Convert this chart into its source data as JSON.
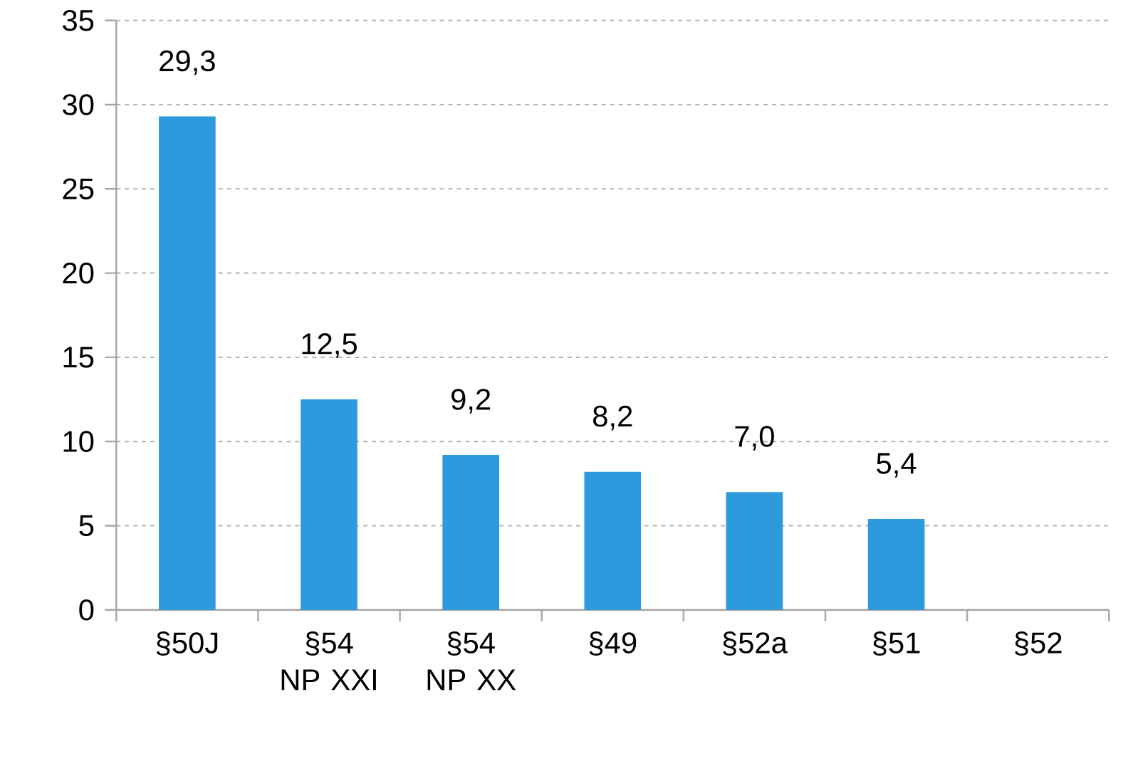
{
  "chart_data": {
    "type": "bar",
    "categories": [
      "§50J",
      "§54 NP XXI",
      "§54 NP XX",
      "§49",
      "§52a",
      "§51",
      "§52"
    ],
    "values": [
      29.3,
      12.5,
      9.2,
      8.2,
      7.0,
      5.4,
      null
    ],
    "value_labels": [
      "29,3",
      "12,5",
      "9,2",
      "8,2",
      "7,0",
      "5,4",
      null
    ],
    "color": "#2e9ade",
    "ylim": [
      0,
      35
    ],
    "yticks": [
      0,
      5,
      10,
      15,
      20,
      25,
      30,
      35
    ],
    "grid": "y"
  }
}
